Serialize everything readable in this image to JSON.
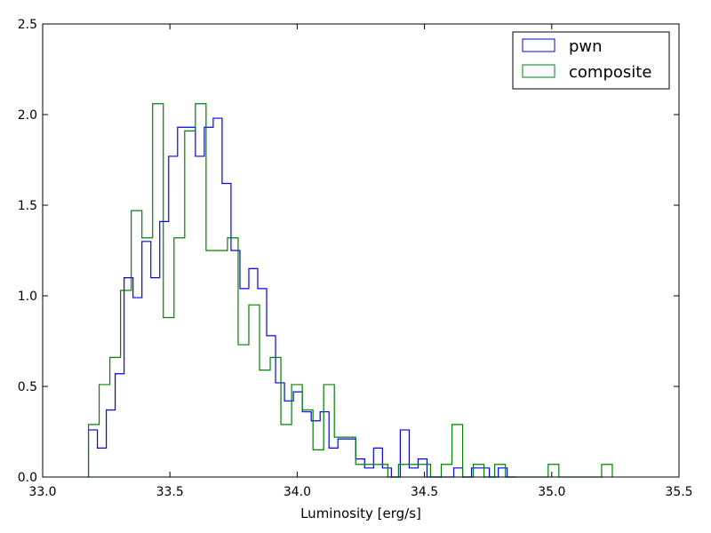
{
  "chart_data": {
    "type": "histogram",
    "xlabel": "Luminosity [erg/s]",
    "ylabel": "",
    "xlim": [
      33.0,
      35.5
    ],
    "ylim": [
      0.0,
      2.5
    ],
    "xticks": [
      "33.0",
      "33.5",
      "34.0",
      "34.5",
      "35.0",
      "35.5"
    ],
    "yticks": [
      "0.0",
      "0.5",
      "1.0",
      "1.5",
      "2.0",
      "2.5"
    ],
    "grid": false,
    "legend_position": "top-right",
    "series": [
      {
        "name": "pwn",
        "color": "#0000ff",
        "edges": [
          33.18,
          33.215,
          33.25,
          33.285,
          33.32,
          33.355,
          33.39,
          33.425,
          33.46,
          33.495,
          33.53,
          33.565,
          33.6,
          33.635,
          33.67,
          33.705,
          33.74,
          33.775,
          33.81,
          33.845,
          33.88,
          33.915,
          33.95,
          33.985,
          34.02,
          34.055,
          34.09,
          34.125,
          34.16,
          34.195,
          34.23,
          34.265,
          34.3,
          34.335,
          34.37,
          34.405,
          34.44,
          34.475,
          34.51,
          34.545,
          34.58,
          34.615,
          34.65,
          34.685,
          34.72,
          34.755,
          34.79,
          34.825,
          34.86
        ],
        "values": [
          0.26,
          0.16,
          0.37,
          0.57,
          1.1,
          0.99,
          1.3,
          1.1,
          1.41,
          1.77,
          1.93,
          1.93,
          1.77,
          1.93,
          1.98,
          1.62,
          1.25,
          1.04,
          1.15,
          1.04,
          0.78,
          0.52,
          0.42,
          0.47,
          0.36,
          0.31,
          0.36,
          0.16,
          0.21,
          0.21,
          0.1,
          0.05,
          0.16,
          0.05,
          0.0,
          0.26,
          0.05,
          0.1,
          0.0,
          0.0,
          0.0,
          0.05,
          0.0,
          0.05,
          0.05,
          0.0,
          0.05,
          0.0
        ]
      },
      {
        "name": "composite",
        "color": "#008000",
        "edges": [
          33.18,
          33.222,
          33.264,
          33.306,
          33.348,
          33.39,
          33.432,
          33.474,
          33.516,
          33.558,
          33.6,
          33.642,
          33.684,
          33.726,
          33.768,
          33.81,
          33.852,
          33.894,
          33.936,
          33.978,
          34.02,
          34.062,
          34.104,
          34.146,
          34.188,
          34.23,
          34.272,
          34.314,
          34.356,
          34.398,
          34.44,
          34.482,
          34.524,
          34.566,
          34.608,
          34.65,
          34.692,
          34.734,
          34.776,
          34.818,
          34.86,
          34.902,
          34.944,
          34.986,
          35.028,
          35.07,
          35.112,
          35.154,
          35.196,
          35.238
        ],
        "values": [
          0.29,
          0.51,
          0.66,
          1.03,
          1.47,
          1.32,
          2.06,
          0.88,
          1.32,
          1.91,
          2.06,
          1.25,
          1.25,
          1.32,
          0.73,
          0.95,
          0.59,
          0.66,
          0.29,
          0.51,
          0.37,
          0.15,
          0.51,
          0.22,
          0.22,
          0.07,
          0.07,
          0.07,
          0.0,
          0.07,
          0.07,
          0.07,
          0.0,
          0.07,
          0.29,
          0.0,
          0.07,
          0.0,
          0.07,
          0.0,
          0.0,
          0.0,
          0.0,
          0.07,
          0.0,
          0.0,
          0.0,
          0.0,
          0.07
        ]
      }
    ]
  }
}
